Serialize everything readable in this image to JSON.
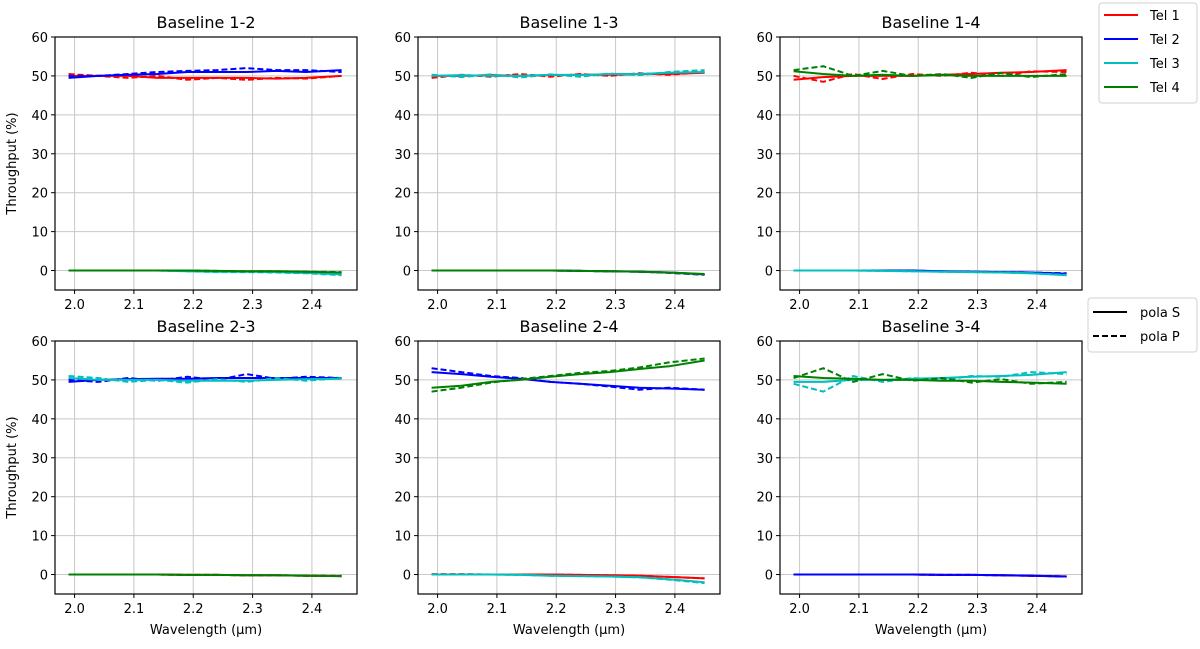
{
  "colors": {
    "Tel 1": "#ff0000",
    "Tel 2": "#0000ff",
    "Tel 3": "#00bfbf",
    "Tel 4": "#008000"
  },
  "legends": {
    "telescopes": [
      {
        "label": "Tel 1",
        "color": "#ff0000"
      },
      {
        "label": "Tel 2",
        "color": "#0000ff"
      },
      {
        "label": "Tel 3",
        "color": "#00bfbf"
      },
      {
        "label": "Tel 4",
        "color": "#008000"
      }
    ],
    "polarization": [
      {
        "label": "pola S",
        "style": "solid"
      },
      {
        "label": "pola P",
        "style": "dashed"
      }
    ]
  },
  "chart_data": [
    {
      "type": "line",
      "title": "Baseline 1-2",
      "xlabel": "",
      "ylabel": "Throughput (%)",
      "xlim": [
        1.967,
        2.476
      ],
      "ylim": [
        -5,
        60
      ],
      "grid": true,
      "xticks": [
        "2.0",
        "2.1",
        "2.2",
        "2.3",
        "2.4"
      ],
      "yticks": [
        "0",
        "10",
        "20",
        "30",
        "40",
        "50",
        "60"
      ],
      "x": [
        1.99,
        2.04,
        2.09,
        2.14,
        2.19,
        2.24,
        2.29,
        2.34,
        2.39,
        2.45
      ],
      "series": [
        {
          "name": "Tel 1",
          "pola": "S",
          "values": [
            50,
            50,
            50,
            49.5,
            49.5,
            49.5,
            49.5,
            49.3,
            49.5,
            50
          ]
        },
        {
          "name": "Tel 1",
          "pola": "P",
          "values": [
            50.5,
            50,
            49.5,
            50,
            49,
            49.5,
            49,
            49.5,
            49.3,
            50
          ]
        },
        {
          "name": "Tel 2",
          "pola": "S",
          "values": [
            49.5,
            50,
            50.3,
            50.5,
            51,
            51,
            51,
            51.3,
            51,
            51.5
          ]
        },
        {
          "name": "Tel 2",
          "pola": "P",
          "values": [
            50,
            50,
            50.5,
            51,
            51.3,
            51.5,
            52,
            51.5,
            51.5,
            51
          ]
        },
        {
          "name": "Tel 3",
          "pola": "S",
          "values": [
            0,
            0,
            0,
            0,
            -0.2,
            -0.3,
            -0.3,
            -0.4,
            -0.6,
            -1
          ]
        },
        {
          "name": "Tel 3",
          "pola": "P",
          "values": [
            0,
            0,
            0,
            0,
            -0.2,
            -0.4,
            -0.4,
            -0.5,
            -0.7,
            -1.2
          ]
        },
        {
          "name": "Tel 4",
          "pola": "S",
          "values": [
            0,
            0,
            0,
            0,
            0,
            -0.1,
            -0.2,
            -0.2,
            -0.3,
            -0.5
          ]
        },
        {
          "name": "Tel 4",
          "pola": "P",
          "values": [
            0,
            0,
            0,
            0,
            0,
            -0.1,
            -0.2,
            -0.2,
            -0.3,
            -0.4
          ]
        }
      ]
    },
    {
      "type": "line",
      "title": "Baseline 1-3",
      "xlabel": "",
      "ylabel": "",
      "xlim": [
        1.967,
        2.476
      ],
      "ylim": [
        -5,
        60
      ],
      "grid": true,
      "xticks": [
        "2.0",
        "2.1",
        "2.2",
        "2.3",
        "2.4"
      ],
      "yticks": [
        "0",
        "10",
        "20",
        "30",
        "40",
        "50",
        "60"
      ],
      "x": [
        1.99,
        2.04,
        2.09,
        2.14,
        2.19,
        2.24,
        2.29,
        2.34,
        2.39,
        2.45
      ],
      "series": [
        {
          "name": "Tel 1",
          "pola": "S",
          "values": [
            50,
            50,
            50.2,
            50,
            50.2,
            50.3,
            50.3,
            50.5,
            50.5,
            50.8
          ]
        },
        {
          "name": "Tel 1",
          "pola": "P",
          "values": [
            49.5,
            50.3,
            49.8,
            50.5,
            49.8,
            50.5,
            50,
            50.7,
            50.3,
            51
          ]
        },
        {
          "name": "Tel 3",
          "pola": "S",
          "values": [
            50,
            50.2,
            50,
            50,
            50.3,
            50.2,
            50.5,
            50.5,
            50.8,
            51
          ]
        },
        {
          "name": "Tel 3",
          "pola": "P",
          "values": [
            50.3,
            49.7,
            50.4,
            49.6,
            50.4,
            49.8,
            50.6,
            50.2,
            51,
            51.5
          ]
        },
        {
          "name": "Tel 2",
          "pola": "S",
          "values": [
            0,
            0,
            0,
            0,
            0,
            -0.1,
            -0.2,
            -0.3,
            -0.5,
            -1
          ]
        },
        {
          "name": "Tel 2",
          "pola": "P",
          "values": [
            0,
            0,
            0,
            0,
            0,
            -0.1,
            -0.2,
            -0.3,
            -0.6,
            -1.1
          ]
        },
        {
          "name": "Tel 4",
          "pola": "S",
          "values": [
            0,
            0,
            0,
            0,
            0,
            -0.1,
            -0.2,
            -0.3,
            -0.5,
            -0.9
          ]
        },
        {
          "name": "Tel 4",
          "pola": "P",
          "values": [
            0,
            0,
            0,
            0,
            0,
            -0.1,
            -0.2,
            -0.3,
            -0.5,
            -1
          ]
        }
      ]
    },
    {
      "type": "line",
      "title": "Baseline 1-4",
      "xlabel": "",
      "ylabel": "",
      "xlim": [
        1.967,
        2.476
      ],
      "ylim": [
        -5,
        60
      ],
      "grid": true,
      "xticks": [
        "2.0",
        "2.1",
        "2.2",
        "2.3",
        "2.4"
      ],
      "yticks": [
        "0",
        "10",
        "20",
        "30",
        "40",
        "50",
        "60"
      ],
      "x": [
        1.99,
        2.04,
        2.09,
        2.14,
        2.19,
        2.24,
        2.29,
        2.34,
        2.39,
        2.45
      ],
      "series": [
        {
          "name": "Tel 1",
          "pola": "S",
          "values": [
            49,
            49.7,
            50,
            50,
            50,
            50.3,
            50.5,
            50.8,
            51,
            51.5
          ]
        },
        {
          "name": "Tel 1",
          "pola": "P",
          "values": [
            50,
            48.5,
            50.5,
            49.2,
            50.5,
            50,
            50.8,
            50,
            51.2,
            51
          ]
        },
        {
          "name": "Tel 4",
          "pola": "S",
          "values": [
            51.2,
            50.5,
            50,
            50.3,
            50,
            50.2,
            50,
            50,
            50,
            50
          ]
        },
        {
          "name": "Tel 4",
          "pola": "P",
          "values": [
            51.5,
            52.5,
            50,
            51.3,
            50,
            50.5,
            49.5,
            50.8,
            49.7,
            50.5
          ]
        },
        {
          "name": "Tel 2",
          "pola": "S",
          "values": [
            0,
            0,
            0,
            0,
            0,
            -0.2,
            -0.3,
            -0.4,
            -0.5,
            -0.8
          ]
        },
        {
          "name": "Tel 2",
          "pola": "P",
          "values": [
            0,
            0,
            0,
            0,
            0,
            -0.2,
            -0.3,
            -0.4,
            -0.5,
            -0.7
          ]
        },
        {
          "name": "Tel 3",
          "pola": "S",
          "values": [
            0,
            0,
            0,
            -0.1,
            -0.2,
            -0.3,
            -0.4,
            -0.5,
            -0.7,
            -1.2
          ]
        },
        {
          "name": "Tel 3",
          "pola": "P",
          "values": [
            0,
            0,
            0,
            -0.1,
            -0.2,
            -0.3,
            -0.4,
            -0.5,
            -0.7,
            -1.1
          ]
        }
      ]
    },
    {
      "type": "line",
      "title": "Baseline 2-3",
      "xlabel": "Wavelength (μm)",
      "ylabel": "Throughput (%)",
      "xlim": [
        1.967,
        2.476
      ],
      "ylim": [
        -5,
        60
      ],
      "grid": true,
      "xticks": [
        "2.0",
        "2.1",
        "2.2",
        "2.3",
        "2.4"
      ],
      "yticks": [
        "0",
        "10",
        "20",
        "30",
        "40",
        "50",
        "60"
      ],
      "x": [
        1.99,
        2.04,
        2.09,
        2.14,
        2.19,
        2.24,
        2.29,
        2.34,
        2.39,
        2.45
      ],
      "series": [
        {
          "name": "Tel 2",
          "pola": "S",
          "values": [
            49.5,
            50,
            50.2,
            50.3,
            50.3,
            50.5,
            50.5,
            50.5,
            50.5,
            50.5
          ]
        },
        {
          "name": "Tel 2",
          "pola": "P",
          "values": [
            50,
            49.5,
            50.5,
            49.8,
            50.8,
            50,
            51.5,
            50.3,
            50.8,
            50.5
          ]
        },
        {
          "name": "Tel 3",
          "pola": "S",
          "values": [
            50.5,
            50,
            50,
            50,
            49.8,
            49.8,
            49.8,
            50,
            50.2,
            50.3
          ]
        },
        {
          "name": "Tel 3",
          "pola": "P",
          "values": [
            51,
            50.5,
            49.5,
            50,
            49.3,
            50.2,
            49.5,
            50.5,
            49.8,
            50.5
          ]
        },
        {
          "name": "Tel 1",
          "pola": "S",
          "values": [
            0,
            0,
            0,
            0,
            -0.1,
            -0.1,
            -0.2,
            -0.2,
            -0.3,
            -0.4
          ]
        },
        {
          "name": "Tel 1",
          "pola": "P",
          "values": [
            0,
            0,
            0,
            0,
            -0.1,
            -0.1,
            -0.2,
            -0.2,
            -0.3,
            -0.3
          ]
        },
        {
          "name": "Tel 4",
          "pola": "S",
          "values": [
            0,
            0,
            0,
            0,
            -0.1,
            -0.1,
            -0.2,
            -0.2,
            -0.3,
            -0.4
          ]
        },
        {
          "name": "Tel 4",
          "pola": "P",
          "values": [
            0,
            0,
            0,
            0,
            -0.1,
            -0.1,
            -0.2,
            -0.2,
            -0.3,
            -0.4
          ]
        }
      ]
    },
    {
      "type": "line",
      "title": "Baseline 2-4",
      "xlabel": "Wavelength (μm)",
      "ylabel": "",
      "xlim": [
        1.967,
        2.476
      ],
      "ylim": [
        -5,
        60
      ],
      "grid": true,
      "xticks": [
        "2.0",
        "2.1",
        "2.2",
        "2.3",
        "2.4"
      ],
      "yticks": [
        "0",
        "10",
        "20",
        "30",
        "40",
        "50",
        "60"
      ],
      "x": [
        1.99,
        2.04,
        2.09,
        2.14,
        2.19,
        2.24,
        2.29,
        2.34,
        2.39,
        2.45
      ],
      "series": [
        {
          "name": "Tel 2",
          "pola": "S",
          "values": [
            52,
            51.5,
            50.8,
            50.3,
            49.5,
            49,
            48.5,
            48,
            47.8,
            47.5
          ]
        },
        {
          "name": "Tel 2",
          "pola": "P",
          "values": [
            53,
            52,
            51,
            50.5,
            49.5,
            49,
            48.3,
            47.5,
            48,
            47.5
          ]
        },
        {
          "name": "Tel 4",
          "pola": "S",
          "values": [
            48,
            48.5,
            49.5,
            50,
            50.8,
            51.5,
            52,
            52.8,
            53.5,
            55
          ]
        },
        {
          "name": "Tel 4",
          "pola": "P",
          "values": [
            47,
            48,
            49.3,
            50.2,
            51,
            51.8,
            52.3,
            53.2,
            54.5,
            55.5
          ]
        },
        {
          "name": "Tel 1",
          "pola": "S",
          "values": [
            0,
            0,
            0,
            0,
            0,
            -0.1,
            -0.2,
            -0.3,
            -0.6,
            -1
          ]
        },
        {
          "name": "Tel 1",
          "pola": "P",
          "values": [
            0.1,
            0.1,
            0,
            0,
            0,
            -0.1,
            -0.2,
            -0.3,
            -0.6,
            -1
          ]
        },
        {
          "name": "Tel 3",
          "pola": "S",
          "values": [
            0,
            0,
            0,
            -0.1,
            -0.3,
            -0.4,
            -0.5,
            -0.7,
            -1.2,
            -2
          ]
        },
        {
          "name": "Tel 3",
          "pola": "P",
          "values": [
            0,
            0,
            0,
            -0.1,
            -0.3,
            -0.4,
            -0.5,
            -0.7,
            -1.3,
            -2.2
          ]
        }
      ]
    },
    {
      "type": "line",
      "title": "Baseline 3-4",
      "xlabel": "Wavelength (μm)",
      "ylabel": "",
      "xlim": [
        1.967,
        2.476
      ],
      "ylim": [
        -5,
        60
      ],
      "grid": true,
      "xticks": [
        "2.0",
        "2.1",
        "2.2",
        "2.3",
        "2.4"
      ],
      "yticks": [
        "0",
        "10",
        "20",
        "30",
        "40",
        "50",
        "60"
      ],
      "x": [
        1.99,
        2.04,
        2.09,
        2.14,
        2.19,
        2.24,
        2.29,
        2.34,
        2.39,
        2.45
      ],
      "series": [
        {
          "name": "Tel 3",
          "pola": "S",
          "values": [
            49.5,
            49.5,
            50,
            50,
            50.3,
            50.5,
            50.8,
            51,
            51.3,
            52
          ]
        },
        {
          "name": "Tel 3",
          "pola": "P",
          "values": [
            49,
            47,
            51,
            49.5,
            50.5,
            50,
            51,
            50.8,
            52,
            51.5
          ]
        },
        {
          "name": "Tel 4",
          "pola": "S",
          "values": [
            51,
            50.5,
            50.3,
            50,
            50,
            49.8,
            49.8,
            49.5,
            49.3,
            49
          ]
        },
        {
          "name": "Tel 4",
          "pola": "P",
          "values": [
            50.5,
            53,
            49.5,
            51.5,
            49.8,
            50.5,
            49.3,
            50.2,
            49,
            49.5
          ]
        },
        {
          "name": "Tel 1",
          "pola": "S",
          "values": [
            0,
            0,
            0,
            0,
            0,
            -0.1,
            -0.1,
            -0.2,
            -0.3,
            -0.5
          ]
        },
        {
          "name": "Tel 1",
          "pola": "P",
          "values": [
            0,
            0,
            0,
            0,
            0,
            -0.1,
            -0.1,
            -0.2,
            -0.3,
            -0.5
          ]
        },
        {
          "name": "Tel 2",
          "pola": "S",
          "values": [
            0,
            0,
            0,
            0,
            0,
            -0.1,
            -0.1,
            -0.2,
            -0.3,
            -0.5
          ]
        },
        {
          "name": "Tel 2",
          "pola": "P",
          "values": [
            0,
            0,
            0,
            0,
            0,
            -0.1,
            -0.1,
            -0.2,
            -0.3,
            -0.5
          ]
        }
      ]
    }
  ]
}
